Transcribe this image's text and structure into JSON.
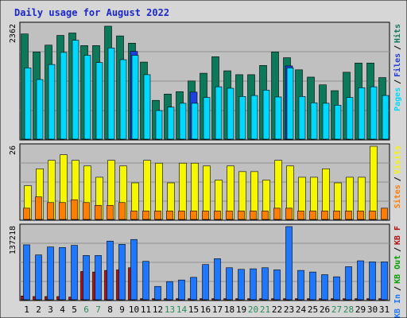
{
  "colors": {
    "frame_bg": "#d6d6d6",
    "panel_bg": "#c0c0c0",
    "grid": "#909090",
    "title": "#1a27c8",
    "hits": "#0c7a5a",
    "files": "#1f3fe0",
    "pages": "#00d8ff",
    "visits": "#f6f600",
    "sites": "#ff7d00",
    "kb_out": "#00a000",
    "kb_in": "#1e78ff",
    "kb_f": "#b01010",
    "day_black": "#000000",
    "day_weekend": "#2a8a5a"
  },
  "chart_data": {
    "type": "bar",
    "title": "Daily usage for August 2022",
    "categories": [
      "1",
      "2",
      "3",
      "4",
      "5",
      "6",
      "7",
      "8",
      "9",
      "10",
      "11",
      "12",
      "13",
      "14",
      "15",
      "16",
      "17",
      "18",
      "19",
      "20",
      "21",
      "22",
      "23",
      "24",
      "25",
      "26",
      "27",
      "28",
      "29",
      "30",
      "31"
    ],
    "weekend_days": [
      "6",
      "7",
      "13",
      "14",
      "20",
      "21",
      "27",
      "28"
    ],
    "panels": [
      {
        "id": "top",
        "max_label": "2362",
        "ymax": 2362,
        "legend": [
          {
            "text": "Hits",
            "color_key": "hits"
          },
          {
            "text": "Files",
            "color_key": "files"
          },
          {
            "text": "Pages",
            "color_key": "pages"
          }
        ],
        "series": [
          {
            "name": "Hits",
            "values": [
              2170,
              1800,
              1940,
              2140,
              2190,
              1930,
              1930,
              2330,
              2130,
              1980,
              1590,
              800,
              930,
              980,
              1200,
              1360,
              1700,
              1410,
              1330,
              1330,
              1520,
              1800,
              1680,
              1430,
              1280,
              1120,
              1000,
              1380,
              1570,
              1570,
              1270
            ]
          },
          {
            "name": "Files",
            "values": [
              0,
              0,
              0,
              0,
              0,
              0,
              0,
              0,
              0,
              1810,
              0,
              0,
              0,
              0,
              970,
              0,
              0,
              0,
              0,
              0,
              0,
              0,
              1510,
              0,
              0,
              0,
              0,
              0,
              0,
              0,
              0
            ]
          },
          {
            "name": "Pages",
            "values": [
              1470,
              1230,
              1540,
              1790,
              2040,
              1730,
              1580,
              1880,
              1640,
              1730,
              1330,
              590,
              660,
              740,
              740,
              860,
              1080,
              1050,
              880,
              900,
              1010,
              870,
              1470,
              880,
              750,
              740,
              700,
              860,
              1060,
              1080,
              900
            ]
          }
        ]
      },
      {
        "id": "mid",
        "max_label": "26",
        "ymax": 26,
        "legend": [
          {
            "text": "Visits",
            "color_key": "visits"
          },
          {
            "text": "Sites",
            "color_key": "sites"
          }
        ],
        "series": [
          {
            "name": "Visits",
            "values": [
              12,
              18,
              21,
              23,
              21,
              19,
              15,
              21,
              19,
              13,
              21,
              20,
              13,
              20,
              20,
              19,
              14,
              19,
              17,
              17,
              14,
              21,
              19,
              15,
              15,
              18,
              13,
              15,
              15,
              26,
              0
            ]
          },
          {
            "name": "Sites",
            "values": [
              4,
              8,
              6,
              6,
              7,
              6,
              5,
              5,
              6,
              3,
              3,
              3,
              3,
              3,
              3,
              3,
              3,
              3,
              3,
              3,
              3,
              4,
              4,
              3,
              3,
              3,
              3,
              3,
              3,
              3,
              4
            ]
          }
        ]
      },
      {
        "id": "bottom",
        "max_label": "137218",
        "ymax": 137218,
        "legend": [
          {
            "text": "KB F",
            "color_key": "kb_f"
          },
          {
            "text": "KB Out",
            "color_key": "kb_out"
          },
          {
            "text": "KB In",
            "color_key": "kb_in"
          }
        ],
        "series": [
          {
            "name": "KB In",
            "values": [
              103000,
              84000,
              99000,
              98000,
              102000,
              83000,
              83000,
              110000,
              104000,
              113000,
              72000,
              25000,
              34000,
              37000,
              42000,
              66000,
              77000,
              60000,
              57000,
              58000,
              60000,
              56000,
              137218,
              55000,
              52000,
              47000,
              43000,
              62000,
              73000,
              71000,
              71000
            ]
          },
          {
            "name": "KB F",
            "values": [
              7000,
              6000,
              6000,
              6000,
              5000,
              53000,
              52000,
              55000,
              56000,
              60000,
              2000,
              2000,
              2000,
              2000,
              2000,
              2000,
              2000,
              2000,
              2000,
              2000,
              2000,
              2000,
              2000,
              2000,
              2000,
              2000,
              2000,
              2000,
              2000,
              2000,
              2000
            ]
          }
        ]
      }
    ]
  }
}
